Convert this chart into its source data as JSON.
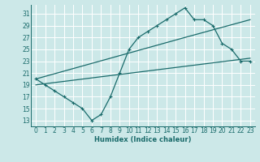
{
  "title": "",
  "xlabel": "Humidex (Indice chaleur)",
  "ylabel": "",
  "bg_color": "#cce8e8",
  "grid_color": "#ffffff",
  "line_color": "#1a6b6b",
  "xlim": [
    -0.5,
    23.5
  ],
  "ylim": [
    12,
    32.5
  ],
  "xticks": [
    0,
    1,
    2,
    3,
    4,
    5,
    6,
    7,
    8,
    9,
    10,
    11,
    12,
    13,
    14,
    15,
    16,
    17,
    18,
    19,
    20,
    21,
    22,
    23
  ],
  "yticks": [
    13,
    15,
    17,
    19,
    21,
    23,
    25,
    27,
    29,
    31
  ],
  "curve_x": [
    0,
    1,
    2,
    3,
    4,
    5,
    6,
    7,
    8,
    9,
    10,
    11,
    12,
    13,
    14,
    15,
    16,
    17,
    18,
    19,
    20,
    21,
    22,
    23
  ],
  "curve_y": [
    20,
    19,
    18,
    17,
    16,
    15,
    13,
    14,
    17,
    21,
    25,
    27,
    28,
    29,
    30,
    31,
    32,
    30,
    30,
    29,
    26,
    25,
    23,
    23
  ],
  "line1_x": [
    0,
    16,
    23
  ],
  "line1_y": [
    20,
    27,
    30
  ],
  "line2_x": [
    0,
    23
  ],
  "line2_y": [
    19,
    23.5
  ],
  "marker_size": 2.5,
  "line_width": 0.9,
  "tick_fontsize": 5.5,
  "xlabel_fontsize": 6.0
}
